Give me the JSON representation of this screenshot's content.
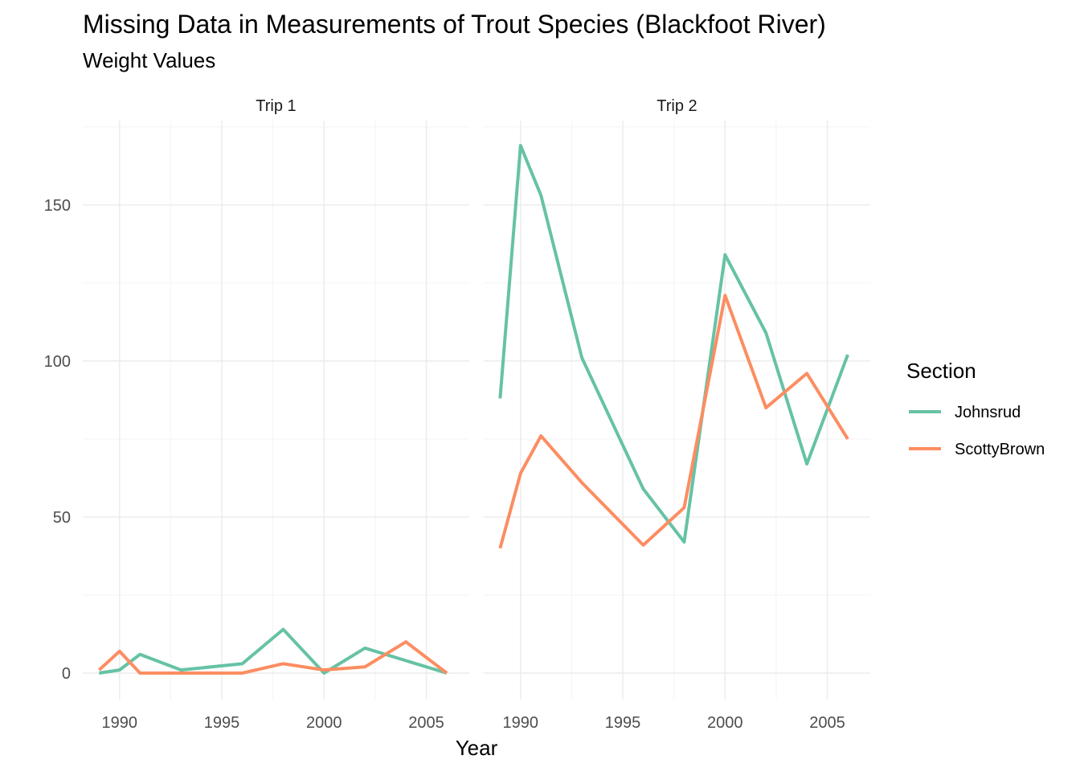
{
  "chart_data": {
    "type": "line",
    "title": "Missing Data in Measurements of Trout Species (Blackfoot River)",
    "subtitle": "Weight Values",
    "xlabel": "Year",
    "ylabel": "",
    "x_ticks": [
      1990,
      1995,
      2000,
      2005
    ],
    "y_ticks": [
      0,
      50,
      100,
      150
    ],
    "xlim": [
      1988.2,
      2007.1
    ],
    "ylim": [
      -8.5,
      177
    ],
    "grid": true,
    "legend": {
      "title": "Section",
      "position": "right",
      "entries": [
        {
          "label": "Johnsrud",
          "color": "#66C2A5"
        },
        {
          "label": "ScottyBrown",
          "color": "#FC8D62"
        }
      ]
    },
    "facets": [
      {
        "label": "Trip 1",
        "series": [
          {
            "name": "Johnsrud",
            "color": "#66C2A5",
            "x": [
              1989,
              1990,
              1991,
              1993,
              1996,
              1998,
              2000,
              2002,
              2006
            ],
            "y": [
              0,
              1,
              6,
              1,
              3,
              14,
              0,
              8,
              0
            ]
          },
          {
            "name": "ScottyBrown",
            "color": "#FC8D62",
            "x": [
              1989,
              1990,
              1991,
              1993,
              1996,
              1998,
              2000,
              2002,
              2004,
              2006
            ],
            "y": [
              1,
              7,
              0,
              0,
              0,
              3,
              1,
              2,
              10,
              0
            ]
          }
        ]
      },
      {
        "label": "Trip 2",
        "series": [
          {
            "name": "Johnsrud",
            "color": "#66C2A5",
            "x": [
              1989,
              1990,
              1991,
              1993,
              1996,
              1998,
              2000,
              2002,
              2004,
              2006
            ],
            "y": [
              88,
              169,
              153,
              101,
              59,
              42,
              134,
              109,
              67,
              102
            ]
          },
          {
            "name": "ScottyBrown",
            "color": "#FC8D62",
            "x": [
              1989,
              1990,
              1991,
              1993,
              1996,
              1998,
              2000,
              2002,
              2004,
              2006
            ],
            "y": [
              40,
              64,
              76,
              61,
              41,
              53,
              121,
              85,
              96,
              75
            ]
          }
        ]
      }
    ]
  }
}
